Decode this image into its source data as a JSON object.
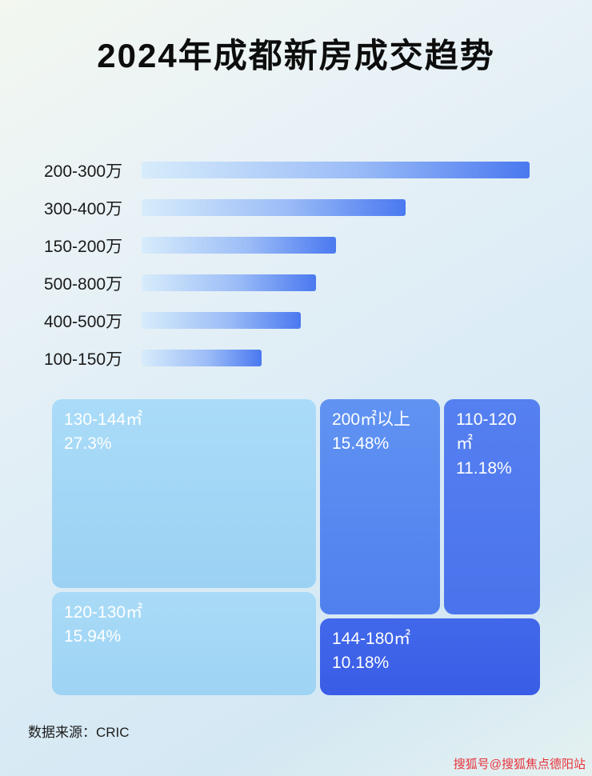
{
  "header": {
    "title": "2024年成都新房成交趋势"
  },
  "bar_chart": {
    "rows": [
      {
        "label": "200-300万",
        "length_pct": 100
      },
      {
        "label": "300-400万",
        "length_pct": 68
      },
      {
        "label": "150-200万",
        "length_pct": 50
      },
      {
        "label": "500-800万",
        "length_pct": 45
      },
      {
        "label": "400-500万",
        "length_pct": 41
      },
      {
        "label": "100-150万",
        "length_pct": 31
      }
    ]
  },
  "treemap": {
    "blocks": [
      {
        "label": "130-144㎡",
        "pct": "27.3%"
      },
      {
        "label": "200㎡以上",
        "pct": "15.48%"
      },
      {
        "label": "110-120㎡",
        "pct": "11.18%"
      },
      {
        "label": "120-130㎡",
        "pct": "15.94%"
      },
      {
        "label": "144-180㎡",
        "pct": "10.18%"
      }
    ]
  },
  "footer": {
    "source": "数据来源：CRIC",
    "watermark": "搜狐号@搜狐焦点德阳站"
  },
  "colors": {
    "bar_gradient_start": "#d7ecfb",
    "bar_gradient_end": "#4a79f0",
    "treemap_light_blue": "#a3d7f5",
    "treemap_medium_blue": "#5b8af0",
    "treemap_blue": "#4d79ee",
    "treemap_dark_blue": "#3e62e9",
    "watermark_red": "#e8323c"
  },
  "chart_data": [
    {
      "type": "bar",
      "orientation": "horizontal",
      "title": "2024年成都新房成交趋势",
      "categories": [
        "200-300万",
        "300-400万",
        "150-200万",
        "500-800万",
        "400-500万",
        "100-150万"
      ],
      "values": [
        100,
        68,
        50,
        45,
        41,
        31
      ],
      "value_unit": "relative bar length, % of longest bar (no numeric labels shown in image)",
      "xlabel": "",
      "ylabel": "",
      "grid": false,
      "legend": false
    },
    {
      "type": "treemap",
      "items": [
        {
          "label": "130-144㎡",
          "value": 27.3
        },
        {
          "label": "120-130㎡",
          "value": 15.94
        },
        {
          "label": "200㎡以上",
          "value": 15.48
        },
        {
          "label": "110-120㎡",
          "value": 11.18
        },
        {
          "label": "144-180㎡",
          "value": 10.18
        }
      ],
      "value_unit": "%",
      "grid": false,
      "legend": false
    }
  ]
}
